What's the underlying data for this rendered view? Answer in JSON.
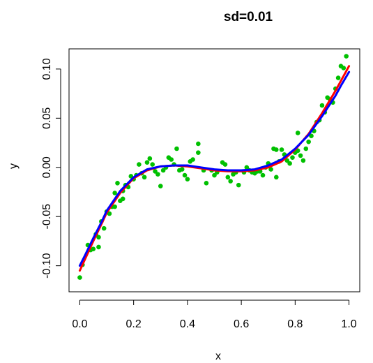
{
  "chart_data": {
    "type": "scatter",
    "title": "sd=0.01",
    "xlabel": "x",
    "ylabel": "y",
    "xlim": [
      -0.04,
      1.04
    ],
    "ylim": [
      -0.1265,
      0.1205
    ],
    "x_ticks": [
      0.0,
      0.2,
      0.4,
      0.6,
      0.8,
      1.0
    ],
    "x_tick_labels": [
      "0.0",
      "0.2",
      "0.4",
      "0.6",
      "0.8",
      "1.0"
    ],
    "y_ticks": [
      -0.1,
      -0.05,
      0.0,
      0.05,
      0.1
    ],
    "y_tick_labels": [
      "-0.10",
      "-0.05",
      "0.00",
      "0.05",
      "0.10"
    ],
    "grid": false,
    "series": [
      {
        "kind": "points",
        "color": "#00c000",
        "points": [
          [
            0.0,
            -0.112
          ],
          [
            0.01,
            -0.099
          ],
          [
            0.03,
            -0.079
          ],
          [
            0.04,
            -0.084
          ],
          [
            0.05,
            -0.083
          ],
          [
            0.06,
            -0.068
          ],
          [
            0.07,
            -0.081
          ],
          [
            0.07,
            -0.071
          ],
          [
            0.08,
            -0.055
          ],
          [
            0.09,
            -0.062
          ],
          [
            0.1,
            -0.045
          ],
          [
            0.11,
            -0.047
          ],
          [
            0.12,
            -0.04
          ],
          [
            0.13,
            -0.04
          ],
          [
            0.13,
            -0.026
          ],
          [
            0.14,
            -0.016
          ],
          [
            0.15,
            -0.034
          ],
          [
            0.16,
            -0.032
          ],
          [
            0.16,
            -0.024
          ],
          [
            0.17,
            -0.018
          ],
          [
            0.18,
            -0.02
          ],
          [
            0.19,
            -0.009
          ],
          [
            0.2,
            -0.012
          ],
          [
            0.21,
            -0.008
          ],
          [
            0.22,
            0.003
          ],
          [
            0.23,
            -0.006
          ],
          [
            0.24,
            -0.01
          ],
          [
            0.25,
            0.005
          ],
          [
            0.26,
            0.009
          ],
          [
            0.27,
            0.003
          ],
          [
            0.28,
            -0.004
          ],
          [
            0.29,
            -0.007
          ],
          [
            0.3,
            -0.019
          ],
          [
            0.31,
            -0.003
          ],
          [
            0.32,
            0.0
          ],
          [
            0.33,
            0.01
          ],
          [
            0.34,
            0.008
          ],
          [
            0.35,
            0.003
          ],
          [
            0.36,
            0.019
          ],
          [
            0.37,
            -0.003
          ],
          [
            0.38,
            -0.002
          ],
          [
            0.39,
            -0.008
          ],
          [
            0.4,
            -0.012
          ],
          [
            0.41,
            0.006
          ],
          [
            0.42,
            0.008
          ],
          [
            0.44,
            0.024
          ],
          [
            0.44,
            0.015
          ],
          [
            0.46,
            -0.003
          ],
          [
            0.47,
            -0.016
          ],
          [
            0.49,
            -0.003
          ],
          [
            0.5,
            -0.008
          ],
          [
            0.51,
            -0.005
          ],
          [
            0.53,
            0.005
          ],
          [
            0.54,
            0.003
          ],
          [
            0.55,
            -0.01
          ],
          [
            0.56,
            -0.014
          ],
          [
            0.57,
            -0.007
          ],
          [
            0.58,
            -0.005
          ],
          [
            0.59,
            -0.018
          ],
          [
            0.61,
            -0.005
          ],
          [
            0.62,
            0.0
          ],
          [
            0.63,
            -0.003
          ],
          [
            0.64,
            -0.005
          ],
          [
            0.65,
            -0.006
          ],
          [
            0.66,
            -0.004
          ],
          [
            0.67,
            -0.004
          ],
          [
            0.68,
            -0.008
          ],
          [
            0.69,
            0.0
          ],
          [
            0.7,
            0.004
          ],
          [
            0.71,
            -0.002
          ],
          [
            0.72,
            0.019
          ],
          [
            0.73,
            0.018
          ],
          [
            0.73,
            -0.01
          ],
          [
            0.74,
            0.006
          ],
          [
            0.75,
            0.018
          ],
          [
            0.76,
            0.013
          ],
          [
            0.77,
            0.007
          ],
          [
            0.78,
            0.004
          ],
          [
            0.79,
            0.01
          ],
          [
            0.8,
            0.015
          ],
          [
            0.81,
            0.035
          ],
          [
            0.81,
            0.017
          ],
          [
            0.82,
            0.012
          ],
          [
            0.83,
            0.007
          ],
          [
            0.84,
            0.019
          ],
          [
            0.85,
            0.026
          ],
          [
            0.86,
            0.032
          ],
          [
            0.87,
            0.037
          ],
          [
            0.88,
            0.046
          ],
          [
            0.89,
            0.048
          ],
          [
            0.9,
            0.063
          ],
          [
            0.91,
            0.056
          ],
          [
            0.92,
            0.071
          ],
          [
            0.93,
            0.069
          ],
          [
            0.94,
            0.066
          ],
          [
            0.95,
            0.08
          ],
          [
            0.96,
            0.091
          ],
          [
            0.97,
            0.103
          ],
          [
            0.98,
            0.101
          ],
          [
            0.99,
            0.113
          ]
        ]
      },
      {
        "kind": "line",
        "color": "#ff0000",
        "points": [
          [
            0.0,
            -0.105
          ],
          [
            0.02,
            -0.093
          ],
          [
            0.05,
            -0.075
          ],
          [
            0.08,
            -0.058
          ],
          [
            0.1,
            -0.046
          ],
          [
            0.15,
            -0.026
          ],
          [
            0.2,
            -0.011
          ],
          [
            0.25,
            -0.003
          ],
          [
            0.3,
            0.001
          ],
          [
            0.35,
            0.002
          ],
          [
            0.4,
            0.001
          ],
          [
            0.45,
            -0.001
          ],
          [
            0.5,
            -0.003
          ],
          [
            0.55,
            -0.004
          ],
          [
            0.6,
            -0.004
          ],
          [
            0.65,
            -0.003
          ],
          [
            0.7,
            0.0
          ],
          [
            0.75,
            0.006
          ],
          [
            0.8,
            0.018
          ],
          [
            0.85,
            0.034
          ],
          [
            0.9,
            0.055
          ],
          [
            0.95,
            0.078
          ],
          [
            0.97,
            0.088
          ],
          [
            1.0,
            0.103
          ]
        ]
      },
      {
        "kind": "line",
        "color": "#0000ff",
        "points": [
          [
            0.0,
            -0.1
          ],
          [
            0.02,
            -0.089
          ],
          [
            0.05,
            -0.072
          ],
          [
            0.08,
            -0.056
          ],
          [
            0.1,
            -0.044
          ],
          [
            0.15,
            -0.024
          ],
          [
            0.2,
            -0.01
          ],
          [
            0.25,
            -0.002
          ],
          [
            0.3,
            0.001
          ],
          [
            0.35,
            0.002
          ],
          [
            0.4,
            0.002
          ],
          [
            0.45,
            0.0
          ],
          [
            0.5,
            -0.002
          ],
          [
            0.55,
            -0.003
          ],
          [
            0.6,
            -0.003
          ],
          [
            0.65,
            -0.002
          ],
          [
            0.7,
            0.002
          ],
          [
            0.75,
            0.008
          ],
          [
            0.8,
            0.019
          ],
          [
            0.85,
            0.033
          ],
          [
            0.9,
            0.052
          ],
          [
            0.95,
            0.073
          ],
          [
            0.97,
            0.083
          ],
          [
            1.0,
            0.097
          ]
        ]
      }
    ]
  }
}
